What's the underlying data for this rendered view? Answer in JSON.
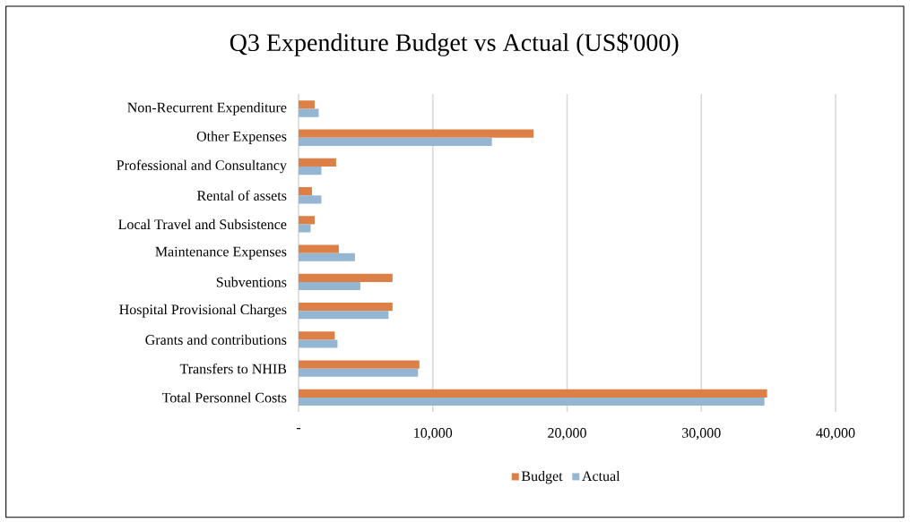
{
  "chart_data": {
    "type": "bar",
    "orientation": "horizontal",
    "title": "Q3 Expenditure Budget vs Actual (US$'000)",
    "categories": [
      "Non-Recurrent Expenditure",
      "Other Expenses",
      "Professional and Consultancy",
      "Rental of assets",
      "Local Travel and Subsistence",
      "Maintenance Expenses",
      "Subventions",
      "Hospital Provisional Charges",
      "Grants and contributions",
      "Transfers to NHIB",
      "Total Personnel Costs"
    ],
    "series": [
      {
        "name": "Budget",
        "color": "#dd8047",
        "values": [
          1200,
          17500,
          2800,
          1000,
          1200,
          3000,
          7000,
          7000,
          2700,
          9000,
          34900
        ]
      },
      {
        "name": "Actual",
        "color": "#94b6d2",
        "values": [
          1500,
          14400,
          1700,
          1700,
          900,
          4200,
          4600,
          6700,
          2900,
          8900,
          34700
        ]
      }
    ],
    "xlim": [
      0,
      40000
    ],
    "xticks": [
      {
        "value": 0,
        "label": "-"
      },
      {
        "value": 10000,
        "label": "10,000"
      },
      {
        "value": 20000,
        "label": "20,000"
      },
      {
        "value": 30000,
        "label": "30,000"
      },
      {
        "value": 40000,
        "label": "40,000"
      }
    ],
    "grid": "x",
    "legend": "bottom"
  }
}
